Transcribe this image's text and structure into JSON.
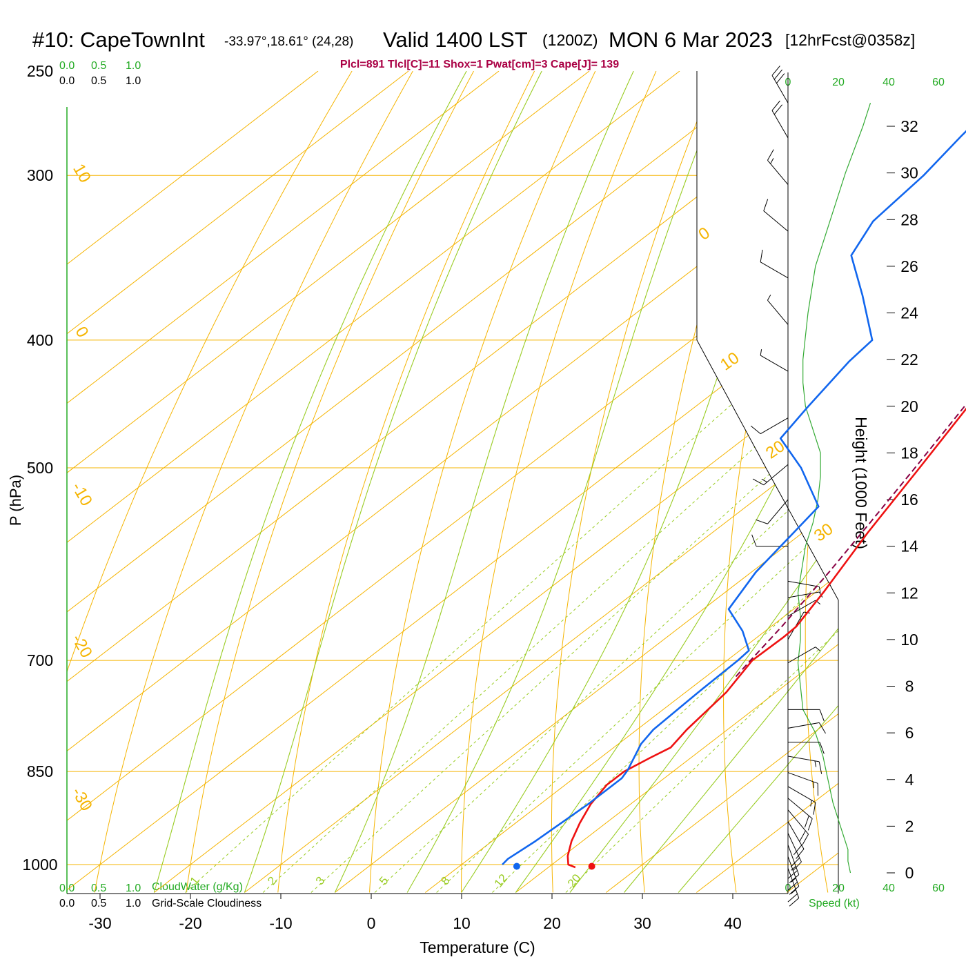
{
  "header": {
    "station": "#10: CapeTownInt",
    "coords": "-33.97°,18.61° (24,28)",
    "valid": "Valid 1400 LST",
    "zulu": "(1200Z)",
    "date": "MON 6 Mar 2023",
    "forecast": "[12hrFcst@0358z]"
  },
  "indices_text": "Plcl=891 Tlcl[C]=11 Shox=1 Pwat[cm]=3 Cape[J]= 139",
  "colors": {
    "temperature": "#ee1111",
    "dewpoint": "#1166ee",
    "parcel": "#880044",
    "isobar_isotherm": "#f5b400",
    "mixing_ratio": "#99cc22",
    "moist_adiabat": "#99cc22",
    "wind_speed": "#33aa33",
    "cloud_scale": "#22aa22"
  },
  "cloud_scales": {
    "top_cloudwater": [
      "0.0",
      "0.5",
      "1.0"
    ],
    "top_cloudiness": [
      "0.0",
      "0.5",
      "1.0"
    ],
    "bottom_cloudwater": [
      "0.0",
      "0.5",
      "1.0"
    ],
    "bottom_cloudiness": [
      "0.0",
      "0.5",
      "1.0"
    ],
    "cloudwater_label": "CloudWater (g/Kg)",
    "cloudiness_label": "Grid-Scale Cloudiness"
  },
  "wind_speed_scale": {
    "ticks": [
      "0",
      "20",
      "40",
      "60"
    ],
    "label": "Speed (kt)"
  },
  "chart_data": {
    "type": "line",
    "title": "#10: CapeTownInt -33.97°,18.61° (24,28) Valid 1400 LST (1200Z) MON 6 Mar 2023 [12hrFcst@0358z]",
    "xlabel": "Temperature (C)",
    "ylabel": "P (hPa)",
    "ylabel_right": "Height (1000 Feet)",
    "y_scale": "log",
    "xlim": [
      -34,
      46
    ],
    "ylim": [
      1050,
      250
    ],
    "x_ticks": [
      -30,
      -20,
      -10,
      0,
      10,
      20,
      30,
      40
    ],
    "p_ticks": [
      250,
      300,
      400,
      500,
      700,
      850,
      1000
    ],
    "height_ticks_kft": [
      0,
      2,
      4,
      6,
      8,
      10,
      12,
      14,
      16,
      18,
      20,
      22,
      24,
      26,
      28,
      30,
      32
    ],
    "isotherm_labels": [
      {
        "temp": 10,
        "text": "10"
      },
      {
        "temp": 0,
        "text": "0"
      },
      {
        "temp": -10,
        "text": "-10"
      },
      {
        "temp": -20,
        "text": "-20"
      },
      {
        "temp": -30,
        "text": "-30"
      },
      {
        "temp": 0,
        "text": "0"
      },
      {
        "temp": 10,
        "text": "10"
      },
      {
        "temp": 20,
        "text": "20"
      },
      {
        "temp": 30,
        "text": "30"
      }
    ],
    "mixing_ratio_lines_gkg": [
      1,
      2,
      3,
      5,
      8,
      12,
      20
    ],
    "series": [
      {
        "name": "Temperature",
        "role": "temperature",
        "points": [
          {
            "p": 1005,
            "t": 23.0
          },
          {
            "p": 1000,
            "t": 21.8
          },
          {
            "p": 985,
            "t": 20.5
          },
          {
            "p": 960,
            "t": 18.8
          },
          {
            "p": 930,
            "t": 17.1
          },
          {
            "p": 900,
            "t": 15.6
          },
          {
            "p": 870,
            "t": 14.6
          },
          {
            "p": 850,
            "t": 14.6
          },
          {
            "p": 830,
            "t": 15.5
          },
          {
            "p": 815,
            "t": 16.3
          },
          {
            "p": 790,
            "t": 15.5
          },
          {
            "p": 740,
            "t": 14.5
          },
          {
            "p": 700,
            "t": 12.8
          },
          {
            "p": 672,
            "t": 12.9
          },
          {
            "p": 660,
            "t": 12.8
          },
          {
            "p": 620,
            "t": 10.8
          },
          {
            "p": 560,
            "t": 7.2
          },
          {
            "p": 500,
            "t": 3.6
          },
          {
            "p": 450,
            "t": 0.2
          },
          {
            "p": 410,
            "t": -2.3
          },
          {
            "p": 385,
            "t": -3.6
          },
          {
            "p": 355,
            "t": -4.6
          },
          {
            "p": 330,
            "t": -5.3
          },
          {
            "p": 300,
            "t": -6.3
          },
          {
            "p": 283,
            "t": -6.8
          },
          {
            "p": 265,
            "t": -7.2
          }
        ]
      },
      {
        "name": "Dewpoint",
        "role": "dewpoint",
        "points": [
          {
            "p": 1000,
            "t": 14.5
          },
          {
            "p": 990,
            "t": 14.3
          },
          {
            "p": 960,
            "t": 14.8
          },
          {
            "p": 900,
            "t": 15.3
          },
          {
            "p": 860,
            "t": 15.3
          },
          {
            "p": 848,
            "t": 14.8
          },
          {
            "p": 810,
            "t": 12.5
          },
          {
            "p": 790,
            "t": 11.8
          },
          {
            "p": 740,
            "t": 11.4
          },
          {
            "p": 700,
            "t": 11.2
          },
          {
            "p": 688,
            "t": 11.0
          },
          {
            "p": 665,
            "t": 7.5
          },
          {
            "p": 640,
            "t": 2.8
          },
          {
            "p": 600,
            "t": 0.5
          },
          {
            "p": 555,
            "t": -1.2
          },
          {
            "p": 535,
            "t": -2.0
          },
          {
            "p": 500,
            "t": -9.5
          },
          {
            "p": 475,
            "t": -16.0
          },
          {
            "p": 450,
            "t": -17.5
          },
          {
            "p": 415,
            "t": -19.5
          },
          {
            "p": 400,
            "t": -20.0
          },
          {
            "p": 370,
            "t": -27.5
          },
          {
            "p": 345,
            "t": -34.5
          },
          {
            "p": 325,
            "t": -37.0
          },
          {
            "p": 300,
            "t": -38.0
          },
          {
            "p": 280,
            "t": -39.5
          },
          {
            "p": 265,
            "t": -40.5
          }
        ]
      },
      {
        "name": "Parcel",
        "role": "parcel",
        "points": [
          {
            "p": 720,
            "t": 13.3
          },
          {
            "p": 700,
            "t": 12.6
          },
          {
            "p": 660,
            "t": 11.2
          },
          {
            "p": 600,
            "t": 8.6
          },
          {
            "p": 550,
            "t": 6.0
          },
          {
            "p": 500,
            "t": 3.1
          },
          {
            "p": 450,
            "t": -0.2
          },
          {
            "p": 410,
            "t": -3.2
          },
          {
            "p": 385,
            "t": -5.3
          }
        ]
      }
    ],
    "surface_points": [
      {
        "name": "temperature",
        "p": 1003,
        "t": 24.4
      },
      {
        "name": "dewpoint",
        "p": 1003,
        "t": 16.1
      }
    ],
    "wind_speed_profile": [
      {
        "kft": 0,
        "kt": 25
      },
      {
        "kft": 0.5,
        "kt": 24
      },
      {
        "kft": 1,
        "kt": 24
      },
      {
        "kft": 2,
        "kt": 21
      },
      {
        "kft": 3,
        "kt": 18
      },
      {
        "kft": 4,
        "kt": 16
      },
      {
        "kft": 5,
        "kt": 14
      },
      {
        "kft": 6,
        "kt": 11
      },
      {
        "kft": 7,
        "kt": 6
      },
      {
        "kft": 8,
        "kt": 5
      },
      {
        "kft": 9,
        "kt": 4
      },
      {
        "kft": 10,
        "kt": 5
      },
      {
        "kft": 11,
        "kt": 5
      },
      {
        "kft": 12,
        "kt": 4
      },
      {
        "kft": 14,
        "kt": 7
      },
      {
        "kft": 15,
        "kt": 10
      },
      {
        "kft": 16,
        "kt": 12
      },
      {
        "kft": 17,
        "kt": 13
      },
      {
        "kft": 18,
        "kt": 13
      },
      {
        "kft": 19,
        "kt": 10
      },
      {
        "kft": 20,
        "kt": 7
      },
      {
        "kft": 21,
        "kt": 6
      },
      {
        "kft": 22,
        "kt": 6
      },
      {
        "kft": 23,
        "kt": 7
      },
      {
        "kft": 24,
        "kt": 8
      },
      {
        "kft": 26,
        "kt": 11
      },
      {
        "kft": 28,
        "kt": 17
      },
      {
        "kft": 30,
        "kt": 23
      },
      {
        "kft": 32,
        "kt": 30
      },
      {
        "kft": 33,
        "kt": 33
      }
    ],
    "wind_barbs": [
      {
        "kft": 0.2,
        "dir": 160,
        "kt": 25
      },
      {
        "kft": 0.7,
        "dir": 160,
        "kt": 24
      },
      {
        "kft": 1.2,
        "dir": 160,
        "kt": 23
      },
      {
        "kft": 1.7,
        "dir": 155,
        "kt": 22
      },
      {
        "kft": 2.2,
        "dir": 150,
        "kt": 21
      },
      {
        "kft": 2.7,
        "dir": 140,
        "kt": 19
      },
      {
        "kft": 3.2,
        "dir": 130,
        "kt": 18
      },
      {
        "kft": 3.7,
        "dir": 120,
        "kt": 16
      },
      {
        "kft": 4.3,
        "dir": 110,
        "kt": 15
      },
      {
        "kft": 5.0,
        "dir": 100,
        "kt": 14
      },
      {
        "kft": 5.6,
        "dir": 90,
        "kt": 12
      },
      {
        "kft": 6.2,
        "dir": 80,
        "kt": 10
      },
      {
        "kft": 7.0,
        "dir": 90,
        "kt": 8
      },
      {
        "kft": 9.0,
        "dir": 60,
        "kt": 6
      },
      {
        "kft": 10.0,
        "dir": 30,
        "kt": 5
      },
      {
        "kft": 11.0,
        "dir": 60,
        "kt": 5
      },
      {
        "kft": 11.8,
        "dir": 80,
        "kt": 6
      },
      {
        "kft": 12.5,
        "dir": 100,
        "kt": 6
      },
      {
        "kft": 14.0,
        "dir": 270,
        "kt": 8
      },
      {
        "kft": 16.0,
        "dir": 220,
        "kt": 12
      },
      {
        "kft": 17.5,
        "dir": 230,
        "kt": 13
      },
      {
        "kft": 19.5,
        "dir": 240,
        "kt": 10
      },
      {
        "kft": 21.5,
        "dir": 300,
        "kt": 6
      },
      {
        "kft": 23.5,
        "dir": 320,
        "kt": 7
      },
      {
        "kft": 25.5,
        "dir": 300,
        "kt": 9
      },
      {
        "kft": 27.5,
        "dir": 310,
        "kt": 12
      },
      {
        "kft": 29.5,
        "dir": 320,
        "kt": 17
      },
      {
        "kft": 31.5,
        "dir": 330,
        "kt": 22
      },
      {
        "kft": 33.0,
        "dir": 330,
        "kt": 28
      }
    ]
  }
}
